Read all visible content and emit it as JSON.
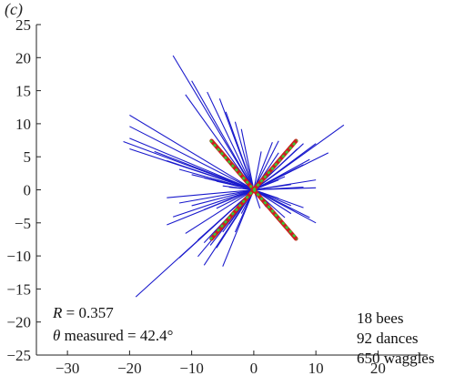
{
  "panel_label": "(c)",
  "annotations": {
    "r_label": "R",
    "r_value": " = 0.357",
    "theta_label": "θ",
    "theta_text": " measured = 42.4°",
    "bees": "18 bees",
    "dances": "92 dances",
    "waggles": "650 waggles"
  },
  "chart_data": {
    "type": "line",
    "title": "",
    "xlabel": "",
    "ylabel": "",
    "xlim": [
      -35,
      28
    ],
    "ylim": [
      -25,
      25
    ],
    "xticks": [
      -30,
      -20,
      -10,
      0,
      10,
      20
    ],
    "yticks": [
      -25,
      -20,
      -15,
      -10,
      -5,
      0,
      5,
      10,
      15,
      20,
      25
    ],
    "grid": false,
    "colors": {
      "vectors": "#1a1acc",
      "mean_axis": "#cc1f1f",
      "fit": "#33cc33",
      "axes": "#222222"
    },
    "series": [
      {
        "type": "segments",
        "note": "waggle vectors, drawn from origin",
        "endpoints": [
          [
            -13,
            20.3
          ],
          [
            -10,
            16.5
          ],
          [
            -11,
            14.4
          ],
          [
            -7.5,
            14.8
          ],
          [
            -5.5,
            13.8
          ],
          [
            -4.5,
            11.8
          ],
          [
            -3,
            10.3
          ],
          [
            -2,
            9.2
          ],
          [
            -20,
            11.3
          ],
          [
            -20,
            9.6
          ],
          [
            -20,
            7.8
          ],
          [
            -21,
            7.3
          ],
          [
            -20,
            6.2
          ],
          [
            -16,
            5.8
          ],
          [
            -14,
            4.4
          ],
          [
            -12,
            3.1
          ],
          [
            -10,
            2.3
          ],
          [
            -8,
            1.8
          ],
          [
            -7,
            1.6
          ],
          [
            -6,
            1.3
          ],
          [
            -5,
            0.6
          ],
          [
            -4,
            0.4
          ],
          [
            -14,
            -1.2
          ],
          [
            -12,
            -2
          ],
          [
            -10,
            -2.4
          ],
          [
            -8,
            -3
          ],
          [
            -6,
            -2.8
          ],
          [
            -13,
            -4.1
          ],
          [
            -14,
            -5.3
          ],
          [
            -11,
            -6.6
          ],
          [
            -9,
            -7.6
          ],
          [
            -8,
            -8
          ],
          [
            -7,
            -8.4
          ],
          [
            -6,
            -8.8
          ],
          [
            -5,
            -6.4
          ],
          [
            -4,
            -5.2
          ],
          [
            -3,
            -4.4
          ],
          [
            -3,
            -6.4
          ],
          [
            -2,
            -3.6
          ],
          [
            -19,
            -16.2
          ],
          [
            -12,
            -10.3
          ],
          [
            -9,
            -10.1
          ],
          [
            -8,
            -11.4
          ],
          [
            -5,
            -11.6
          ],
          [
            1.2,
            5.8
          ],
          [
            3,
            7.2
          ],
          [
            4,
            7.4
          ],
          [
            4,
            5.6
          ],
          [
            5,
            5.8
          ],
          [
            7,
            6.2
          ],
          [
            8,
            7
          ],
          [
            9,
            4.6
          ],
          [
            10,
            7
          ],
          [
            12,
            5.6
          ],
          [
            14.5,
            9.8
          ],
          [
            8,
            3.8
          ],
          [
            7,
            3.3
          ],
          [
            6,
            2.8
          ],
          [
            5,
            2
          ],
          [
            4,
            1.5
          ],
          [
            6,
            0.8
          ],
          [
            8,
            0.4
          ],
          [
            10,
            1.5
          ],
          [
            10,
            0.3
          ],
          [
            4,
            -1.3
          ],
          [
            6,
            -2.4
          ],
          [
            8,
            -2.7
          ],
          [
            9,
            -4.2
          ],
          [
            10,
            -5
          ],
          [
            6,
            -3.6
          ],
          [
            5,
            -4.2
          ],
          [
            4,
            -4.6
          ],
          [
            3,
            -3.4
          ],
          [
            2,
            -2.6
          ],
          [
            1,
            -2.8
          ]
        ]
      },
      {
        "type": "line",
        "note": "red axis, first diagonal",
        "x": [
          -6.8,
          6.8
        ],
        "y": [
          -7.4,
          7.4
        ]
      },
      {
        "type": "line",
        "note": "red axis, second diagonal",
        "x": [
          -6.8,
          6.8
        ],
        "y": [
          7.4,
          -7.4
        ]
      },
      {
        "type": "line",
        "note": "green dashed axis, first diagonal",
        "x": [
          -7,
          7
        ],
        "y": [
          -7.5,
          7.5
        ]
      },
      {
        "type": "line",
        "note": "green dashed axis, second diagonal",
        "x": [
          -7,
          7
        ],
        "y": [
          7.5,
          -7.5
        ]
      }
    ]
  }
}
